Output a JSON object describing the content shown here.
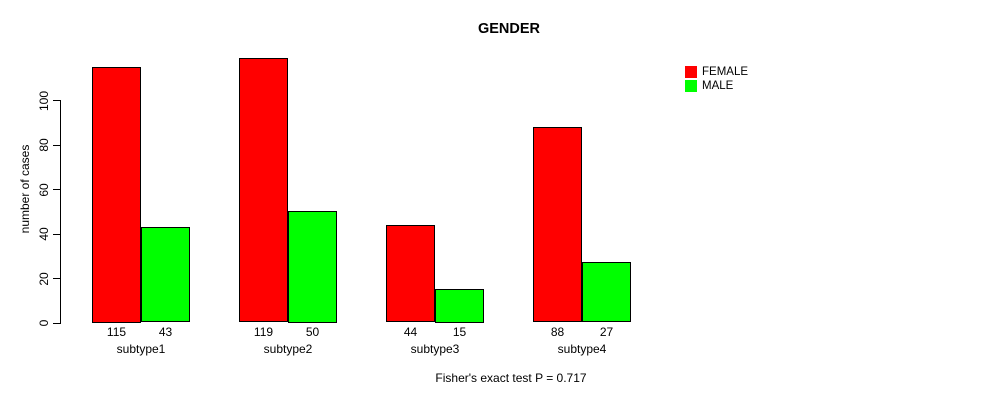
{
  "chart_data": {
    "type": "bar",
    "title": "GENDER",
    "categories": [
      "subtype1",
      "subtype2",
      "subtype3",
      "subtype4"
    ],
    "series": [
      {
        "name": "FEMALE",
        "color": "#ff0000",
        "values": [
          115,
          119,
          44,
          88
        ]
      },
      {
        "name": "MALE",
        "color": "#00ff00",
        "values": [
          43,
          50,
          15,
          27
        ]
      }
    ],
    "xlabel": "",
    "ylabel": "number of cases",
    "ylim": [
      0,
      119
    ],
    "yticks": [
      0,
      20,
      40,
      60,
      80,
      100
    ],
    "grid": false,
    "legend_position": "top-right",
    "values_shown_under_bars": true,
    "annotation": "Fisher's exact test P = 0.717"
  }
}
